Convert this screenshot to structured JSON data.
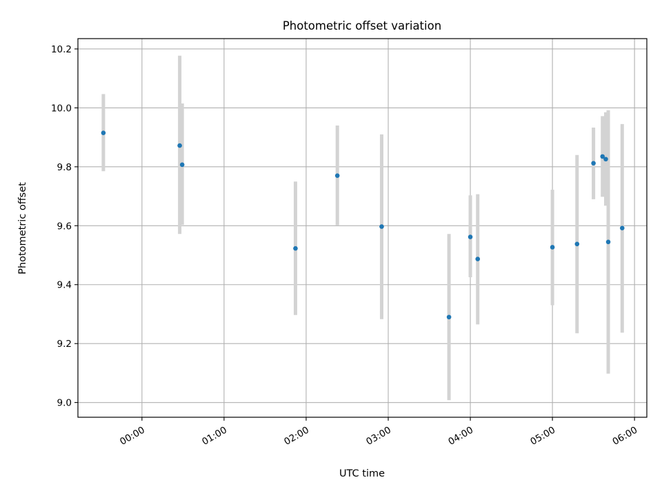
{
  "chart_data": {
    "type": "scatter",
    "title": "Photometric offset variation",
    "xlabel": "UTC time",
    "ylabel": "Photometric offset",
    "x_unit": "hours UTC",
    "xlim": [
      -0.78,
      6.15
    ],
    "ylim": [
      8.95,
      10.235
    ],
    "xticks": [
      0,
      1,
      2,
      3,
      4,
      5,
      6
    ],
    "xtick_labels": [
      "00:00",
      "01:00",
      "02:00",
      "03:00",
      "04:00",
      "05:00",
      "06:00"
    ],
    "yticks": [
      9.0,
      9.2,
      9.4,
      9.6,
      9.8,
      10.0,
      10.2
    ],
    "ytick_labels": [
      "9.0",
      "9.2",
      "9.4",
      "9.6",
      "9.8",
      "10.0",
      "10.2"
    ],
    "grid": true,
    "colors": {
      "points": "#1f77b4",
      "error_bars": "#d3d3d3",
      "grid": "#b0b0b0"
    },
    "points": [
      {
        "x": -0.47,
        "y": 9.915,
        "err_low": 9.785,
        "err_high": 10.047
      },
      {
        "x": 0.46,
        "y": 9.872,
        "err_low": 9.572,
        "err_high": 10.177
      },
      {
        "x": 0.49,
        "y": 9.807,
        "err_low": 9.603,
        "err_high": 10.015
      },
      {
        "x": 1.87,
        "y": 9.523,
        "err_low": 9.297,
        "err_high": 9.75
      },
      {
        "x": 2.38,
        "y": 9.77,
        "err_low": 9.602,
        "err_high": 9.94
      },
      {
        "x": 2.92,
        "y": 9.597,
        "err_low": 9.283,
        "err_high": 9.91
      },
      {
        "x": 3.74,
        "y": 9.29,
        "err_low": 9.008,
        "err_high": 9.572
      },
      {
        "x": 4.0,
        "y": 9.562,
        "err_low": 9.425,
        "err_high": 9.703
      },
      {
        "x": 4.09,
        "y": 9.487,
        "err_low": 9.265,
        "err_high": 9.707
      },
      {
        "x": 5.0,
        "y": 9.527,
        "err_low": 9.33,
        "err_high": 9.722
      },
      {
        "x": 5.3,
        "y": 9.538,
        "err_low": 9.235,
        "err_high": 9.84
      },
      {
        "x": 5.5,
        "y": 9.812,
        "err_low": 9.69,
        "err_high": 9.933
      },
      {
        "x": 5.61,
        "y": 9.835,
        "err_low": 9.698,
        "err_high": 9.972
      },
      {
        "x": 5.65,
        "y": 9.826,
        "err_low": 9.668,
        "err_high": 9.985
      },
      {
        "x": 5.68,
        "y": 9.545,
        "err_low": 9.098,
        "err_high": 9.992
      },
      {
        "x": 5.85,
        "y": 9.592,
        "err_low": 9.237,
        "err_high": 9.945
      }
    ]
  }
}
